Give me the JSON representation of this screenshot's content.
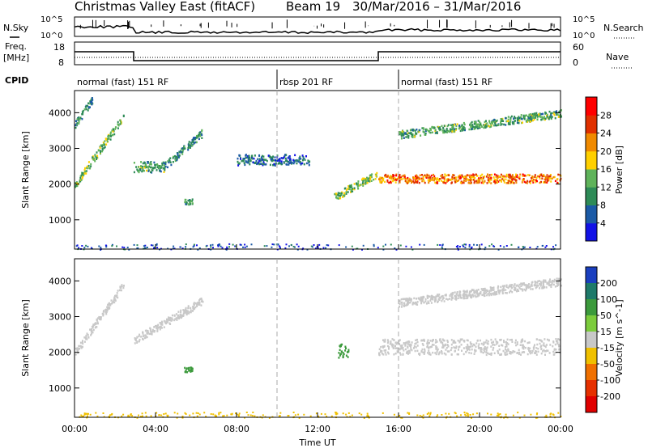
{
  "header": {
    "site": "Christmas Valley East (fitACF)",
    "beam": "Beam 19",
    "dates": "30/Mar/2016 – 31/Mar/2016"
  },
  "labels": {
    "nsky": "N.Sky",
    "nsearch": "N.Search",
    "freq_line1": "Freq.",
    "freq_line2": "[MHz]",
    "nave": "Nave",
    "cpid": "CPID",
    "nsky_ticks": [
      "10^5",
      "10^0"
    ],
    "nsearch_ticks": [
      "10^5",
      "10^0"
    ],
    "freq_ticks": [
      "18",
      "8"
    ],
    "nave_ticks": [
      "60",
      "0"
    ]
  },
  "cpid_segments": [
    {
      "label": "normal (fast) 151 RF",
      "start_h": 0.0,
      "end_h": 10.0
    },
    {
      "label": "rbsp 201 RF",
      "start_h": 10.0,
      "end_h": 16.0
    },
    {
      "label": "normal (fast) 151 RF",
      "start_h": 16.0,
      "end_h": 24.0
    }
  ],
  "chart_data": [
    {
      "type": "heatmap",
      "name": "power",
      "xlabel": "Time UT",
      "ylabel": "Slant Range [km]",
      "x_ticks": [
        "00:00",
        "04:00",
        "08:00",
        "12:00",
        "16:00",
        "20:00",
        "00:00"
      ],
      "x_range_hours": [
        0,
        24
      ],
      "y_ticks": [
        1000,
        2000,
        3000,
        4000
      ],
      "y_range": [
        180,
        4620
      ],
      "colorbar": {
        "label": "Power [dB]",
        "ticks": [
          4,
          8,
          12,
          16,
          20,
          24,
          28
        ],
        "range": [
          0,
          32
        ],
        "colors": [
          "#1212e6",
          "#1b5aa6",
          "#2e8b57",
          "#5fb35a",
          "#ffd000",
          "#f08a00",
          "#e03000",
          "#ff0000"
        ]
      },
      "features": [
        {
          "from_h": 0.0,
          "to_h": 2.4,
          "range_start": 2000,
          "range_end": 3900,
          "value": 14
        },
        {
          "from_h": 0.0,
          "to_h": 0.9,
          "range_start": 3700,
          "range_end": 4400,
          "value": 10
        },
        {
          "from_h": 2.9,
          "to_h": 4.4,
          "range_start": 2350,
          "range_end": 2650,
          "value": 12
        },
        {
          "from_h": 4.4,
          "to_h": 6.3,
          "range_start": 2500,
          "range_end": 3450,
          "value": 9
        },
        {
          "from_h": 5.4,
          "to_h": 5.8,
          "range_start": 1450,
          "range_end": 1600,
          "value": 10
        },
        {
          "from_h": 8.0,
          "to_h": 11.6,
          "range_start": 2550,
          "range_end": 2850,
          "value": 7
        },
        {
          "from_h": 12.8,
          "to_h": 14.9,
          "range_start": 1650,
          "range_end": 2300,
          "value": 14
        },
        {
          "from_h": 15.0,
          "to_h": 24.0,
          "range_start": 2050,
          "range_end": 2300,
          "value": 26
        },
        {
          "from_h": 16.0,
          "to_h": 24.0,
          "range_start": 3400,
          "range_end": 4000,
          "value": 12
        }
      ]
    },
    {
      "type": "heatmap",
      "name": "velocity",
      "xlabel": "Time UT",
      "ylabel": "Slant Range [km]",
      "x_ticks": [
        "00:00",
        "04:00",
        "08:00",
        "12:00",
        "16:00",
        "20:00",
        "00:00"
      ],
      "x_range_hours": [
        0,
        24
      ],
      "y_ticks": [
        1000,
        2000,
        3000,
        4000
      ],
      "y_range": [
        180,
        4620
      ],
      "colorbar": {
        "label": "Velocity [m s^-1]",
        "ticks": [
          200,
          100,
          50,
          15,
          -15,
          -50,
          -100,
          -200
        ],
        "colors": [
          "#1a3fbf",
          "#1e7a6a",
          "#3c9a3c",
          "#7ccc3c",
          "#c8c8c8",
          "#f0c000",
          "#f07000",
          "#e63000",
          "#e00000"
        ]
      },
      "features": [
        {
          "from_h": 0.0,
          "to_h": 2.4,
          "range_start": 2000,
          "range_end": 3900,
          "value": 0
        },
        {
          "from_h": 2.9,
          "to_h": 6.3,
          "range_start": 2350,
          "range_end": 3450,
          "value": 0
        },
        {
          "from_h": 5.4,
          "to_h": 5.8,
          "range_start": 1450,
          "range_end": 1600,
          "value": 60
        },
        {
          "from_h": 13.0,
          "to_h": 13.5,
          "range_start": 1850,
          "range_end": 2250,
          "value": 60
        },
        {
          "from_h": 15.0,
          "to_h": 24.0,
          "range_start": 1950,
          "range_end": 2400,
          "value": 0
        },
        {
          "from_h": 16.0,
          "to_h": 24.0,
          "range_start": 3400,
          "range_end": 4000,
          "value": 0
        }
      ]
    }
  ]
}
